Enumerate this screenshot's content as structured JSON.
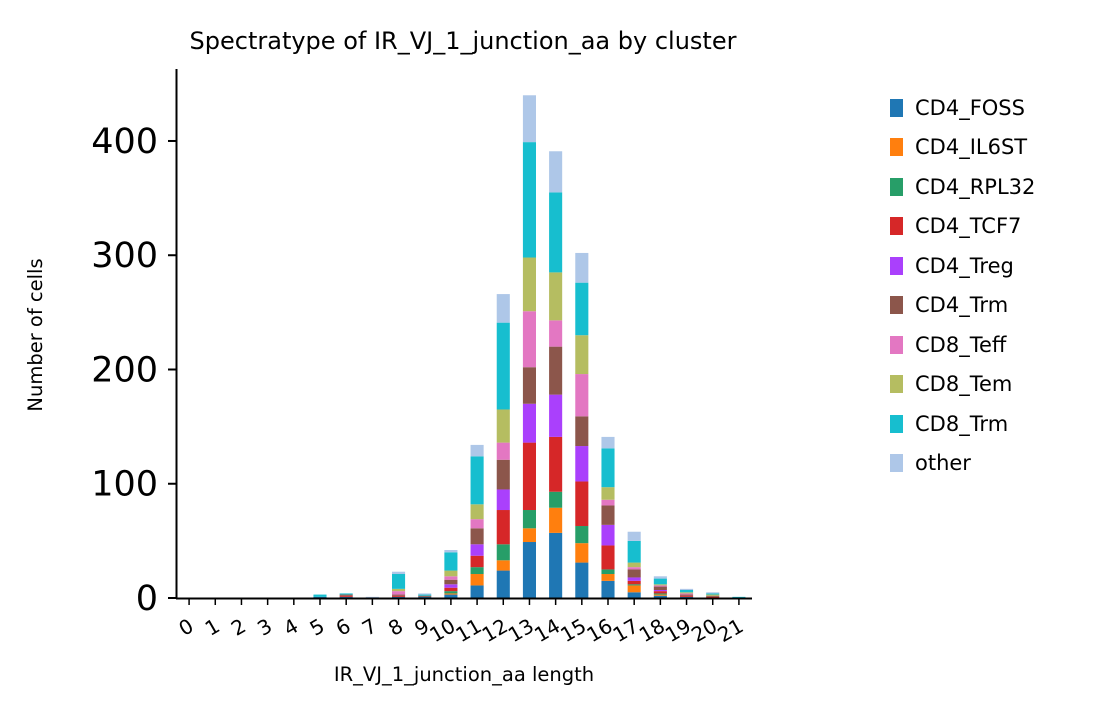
{
  "chart_data": {
    "type": "bar",
    "stacked": true,
    "title": "Spectratype of IR_VJ_1_junction_aa by cluster",
    "xlabel": "IR_VJ_1_junction_aa length",
    "ylabel": "Number of cells",
    "ylim": [
      0,
      463
    ],
    "yticks": [
      0,
      100,
      200,
      300,
      400
    ],
    "grid": false,
    "legend_position": "right",
    "categories": [
      "0",
      "1",
      "2",
      "3",
      "4",
      "5",
      "6",
      "7",
      "8",
      "9",
      "10",
      "11",
      "12",
      "13",
      "14",
      "15",
      "16",
      "17",
      "18",
      "19",
      "20",
      "21"
    ],
    "series": [
      {
        "name": "CD4_FOSS",
        "color": "#1f77b4",
        "values": [
          0,
          0,
          0,
          0,
          0,
          1,
          1,
          0,
          1,
          1,
          3,
          11,
          24,
          49,
          57,
          31,
          15,
          5,
          2,
          1,
          0,
          0
        ]
      },
      {
        "name": "CD4_IL6ST",
        "color": "#ff7f0e",
        "values": [
          0,
          0,
          0,
          0,
          0,
          0,
          0,
          0,
          0,
          0,
          1,
          10,
          9,
          12,
          22,
          17,
          6,
          6,
          1,
          0,
          0,
          0
        ]
      },
      {
        "name": "CD4_RPL32",
        "color": "#279e68",
        "values": [
          0,
          0,
          0,
          0,
          0,
          0,
          0,
          0,
          0,
          0,
          2,
          6,
          14,
          16,
          14,
          15,
          4,
          1,
          1,
          0,
          0,
          0
        ]
      },
      {
        "name": "CD4_TCF7",
        "color": "#d62728",
        "values": [
          0,
          0,
          0,
          0,
          0,
          0,
          1,
          0,
          1,
          0,
          3,
          10,
          30,
          59,
          48,
          39,
          21,
          3,
          2,
          1,
          1,
          0
        ]
      },
      {
        "name": "CD4_Treg",
        "color": "#aa40fc",
        "values": [
          0,
          0,
          0,
          0,
          0,
          0,
          0,
          0,
          0,
          0,
          3,
          10,
          18,
          34,
          37,
          31,
          18,
          3,
          1,
          0,
          0,
          0
        ]
      },
      {
        "name": "CD4_Trm",
        "color": "#8c564b",
        "values": [
          0,
          0,
          0,
          0,
          0,
          0,
          1,
          0,
          1,
          1,
          4,
          14,
          26,
          32,
          42,
          26,
          17,
          7,
          3,
          1,
          1,
          0
        ]
      },
      {
        "name": "CD8_Teff",
        "color": "#e377c2",
        "values": [
          0,
          0,
          0,
          0,
          0,
          0,
          0,
          0,
          3,
          0,
          3,
          8,
          15,
          49,
          23,
          37,
          5,
          2,
          1,
          1,
          0,
          0
        ]
      },
      {
        "name": "CD8_Tem",
        "color": "#b5bd61",
        "values": [
          0,
          0,
          0,
          0,
          0,
          0,
          0,
          0,
          2,
          0,
          5,
          13,
          29,
          47,
          42,
          34,
          11,
          4,
          1,
          1,
          1,
          0
        ]
      },
      {
        "name": "CD8_Trm",
        "color": "#17becf",
        "values": [
          0,
          0,
          0,
          0,
          0,
          2,
          1,
          0,
          13,
          1,
          16,
          42,
          76,
          101,
          70,
          46,
          34,
          19,
          5,
          2,
          1,
          1
        ]
      },
      {
        "name": "other",
        "color": "#aec7e8",
        "values": [
          0,
          0,
          0,
          0,
          0,
          0,
          0,
          1,
          2,
          1,
          2,
          10,
          25,
          41,
          36,
          26,
          10,
          8,
          2,
          1,
          1,
          0
        ]
      }
    ]
  }
}
